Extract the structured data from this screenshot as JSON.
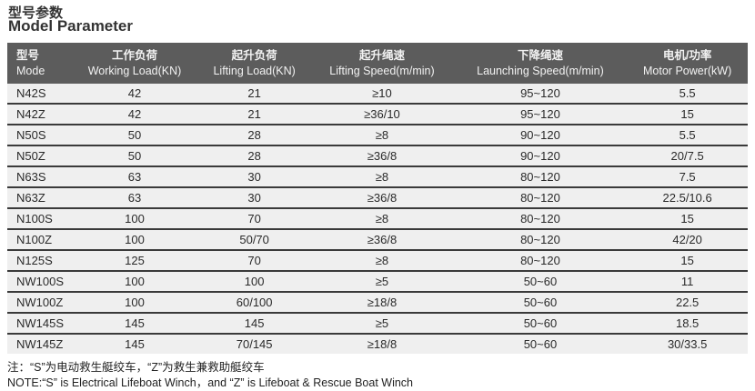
{
  "title_cn": "型号参数",
  "title_en": "Model Parameter",
  "columns": [
    {
      "cn": "型号",
      "en": "Mode"
    },
    {
      "cn": "工作负荷",
      "en": "Working Load(KN)"
    },
    {
      "cn": "起升负荷",
      "en": "Lifting Load(KN)"
    },
    {
      "cn": "起升绳速",
      "en": "Lifting Speed(m/min)"
    },
    {
      "cn": "下降绳速",
      "en": "Launching Speed(m/min)"
    },
    {
      "cn": "电机/功率",
      "en": "Motor Power(kW)"
    }
  ],
  "rows": [
    [
      "N42S",
      "42",
      "21",
      "≥10",
      "95~120",
      "5.5"
    ],
    [
      "N42Z",
      "42",
      "21",
      "≥36/10",
      "95~120",
      "15"
    ],
    [
      "N50S",
      "50",
      "28",
      "≥8",
      "90~120",
      "5.5"
    ],
    [
      "N50Z",
      "50",
      "28",
      "≥36/8",
      "90~120",
      "20/7.5"
    ],
    [
      "N63S",
      "63",
      "30",
      "≥8",
      "80~120",
      "7.5"
    ],
    [
      "N63Z",
      "63",
      "30",
      "≥36/8",
      "80~120",
      "22.5/10.6"
    ],
    [
      "N100S",
      "100",
      "70",
      "≥8",
      "80~120",
      "15"
    ],
    [
      "N100Z",
      "100",
      "50/70",
      "≥36/8",
      "80~120",
      "42/20"
    ],
    [
      "N125S",
      "125",
      "70",
      "≥8",
      "80~120",
      "15"
    ],
    [
      "NW100S",
      "100",
      "100",
      "≥5",
      "50~60",
      "11"
    ],
    [
      "NW100Z",
      "100",
      "60/100",
      "≥18/8",
      "50~60",
      "22.5"
    ],
    [
      "NW145S",
      "145",
      "145",
      "≥5",
      "50~60",
      "18.5"
    ],
    [
      "NW145Z",
      "145",
      "70/145",
      "≥18/8",
      "50~60",
      "30/33.5"
    ]
  ],
  "note_cn": "注：“S”为电动救生艇绞车，“Z”为救生兼救助艇绞车",
  "note_en": "NOTE:“S” is Electrical Lifeboat Winch，and “Z” is Lifeboat & Rescue Boat Winch",
  "colors": {
    "header_bg": "#5c5c5c",
    "row_bg": "#efefef",
    "row_divider": "#3a3a3a"
  }
}
